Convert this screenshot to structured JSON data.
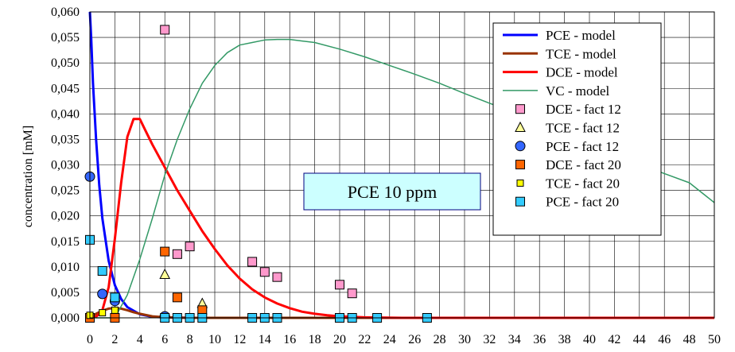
{
  "chart_data": {
    "type": "scatter",
    "ylabel": "concentration [mM]",
    "xlim": [
      0,
      50
    ],
    "ylim": [
      0,
      0.06
    ],
    "x_ticks": [
      0,
      2,
      4,
      6,
      8,
      10,
      12,
      14,
      16,
      18,
      20,
      22,
      24,
      26,
      28,
      30,
      32,
      34,
      36,
      38,
      40,
      42,
      44,
      46,
      48,
      50
    ],
    "y_ticks": [
      0,
      0.005,
      0.01,
      0.015,
      0.02,
      0.025,
      0.03,
      0.035,
      0.04,
      0.045,
      0.05,
      0.055,
      0.06
    ],
    "y_tick_labels": [
      "0,000",
      "0,005",
      "0,010",
      "0,015",
      "0,020",
      "0,025",
      "0,030",
      "0,035",
      "0,040",
      "0,045",
      "0,050",
      "0,055",
      "0,060"
    ],
    "grid": true,
    "legend_position": "top-right",
    "annotation": "PCE 10 ppm",
    "series": [
      {
        "name": "PCE - model",
        "kind": "line",
        "color": "#0000ff",
        "width": 3,
        "x": [
          0,
          0.1,
          0.25,
          0.5,
          0.75,
          1,
          1.5,
          2,
          2.5,
          3,
          4,
          5,
          6,
          8,
          10,
          15,
          20,
          30,
          40,
          50
        ],
        "y": [
          0.06,
          0.055,
          0.046,
          0.035,
          0.026,
          0.0195,
          0.0112,
          0.0064,
          0.0037,
          0.0021,
          0.0007,
          0.0002,
          0.0001,
          0,
          0,
          0,
          0,
          0,
          0,
          0
        ]
      },
      {
        "name": "TCE - model",
        "kind": "line",
        "color": "#993300",
        "width": 3,
        "x": [
          0,
          0.5,
          1,
          1.5,
          2,
          2.5,
          3,
          3.5,
          4,
          5,
          6,
          8,
          10,
          15,
          20,
          30,
          40,
          50
        ],
        "y": [
          0,
          0.0008,
          0.0014,
          0.0018,
          0.0019,
          0.0018,
          0.0015,
          0.0011,
          0.0008,
          0.0003,
          0.0001,
          0,
          0,
          0,
          0,
          0,
          0,
          0
        ]
      },
      {
        "name": "DCE - model",
        "kind": "line",
        "color": "#ff0000",
        "width": 3,
        "x": [
          0,
          0.5,
          1,
          1.5,
          2,
          2.5,
          3,
          3.5,
          4,
          4.5,
          5,
          6,
          7,
          8,
          9,
          10,
          11,
          12,
          13,
          14,
          15,
          16,
          17,
          18,
          19,
          20,
          22,
          25,
          30,
          40,
          50
        ],
        "y": [
          0,
          0.0002,
          0.0015,
          0.006,
          0.0155,
          0.0265,
          0.0355,
          0.039,
          0.039,
          0.0365,
          0.034,
          0.0295,
          0.025,
          0.021,
          0.017,
          0.0135,
          0.0103,
          0.0077,
          0.0056,
          0.004,
          0.0028,
          0.0019,
          0.0012,
          0.0008,
          0.0005,
          0.0003,
          0.0001,
          0,
          0,
          0,
          0
        ]
      },
      {
        "name": "VC - model",
        "kind": "line",
        "color": "#339966",
        "width": 1.5,
        "x": [
          0,
          2,
          3,
          4,
          5,
          6,
          7,
          8,
          9,
          10,
          11,
          12,
          13,
          14,
          15,
          16,
          17,
          18,
          20,
          22,
          24,
          26,
          28,
          30,
          32,
          34,
          36,
          38,
          40,
          42,
          44,
          46,
          48,
          50
        ],
        "y": [
          0,
          0,
          0.0045,
          0.0115,
          0.0195,
          0.028,
          0.035,
          0.041,
          0.046,
          0.0495,
          0.052,
          0.0535,
          0.054,
          0.0545,
          0.0546,
          0.0546,
          0.0543,
          0.054,
          0.0527,
          0.0512,
          0.0495,
          0.0478,
          0.046,
          0.044,
          0.0421,
          0.0403,
          0.0382,
          0.0363,
          0.0343,
          0.0323,
          0.0301,
          0.0283,
          0.0265,
          0.0226
        ]
      },
      {
        "name": "DCE - fact 12",
        "kind": "marker",
        "shape": "square",
        "fill": "#ff99cc",
        "x": [
          6,
          7,
          8,
          13,
          14,
          15,
          20,
          21
        ],
        "y": [
          0.0565,
          0.0125,
          0.014,
          0.011,
          0.009,
          0.008,
          0.0065,
          0.0048
        ]
      },
      {
        "name": "TCE - fact 12",
        "kind": "marker",
        "shape": "triangle",
        "fill": "#ffff99",
        "x": [
          6,
          9
        ],
        "y": [
          0.0085,
          0.0028
        ]
      },
      {
        "name": "PCE - fact 12",
        "kind": "marker",
        "shape": "circle",
        "fill": "#3366ff",
        "x": [
          0,
          1,
          2,
          6
        ],
        "y": [
          0.0277,
          0.0047,
          0.0033,
          0.0003
        ]
      },
      {
        "name": "DCE - fact 20",
        "kind": "marker",
        "shape": "square",
        "fill": "#ff6600",
        "x": [
          0,
          2,
          6,
          7,
          9
        ],
        "y": [
          0,
          0,
          0.013,
          0.004,
          0.0015
        ]
      },
      {
        "name": "TCE - fact 20",
        "kind": "marker",
        "shape": "smallsquare",
        "fill": "#ffff00",
        "x": [
          0,
          1,
          2
        ],
        "y": [
          0.0005,
          0.001,
          0.0015
        ]
      },
      {
        "name": "PCE - fact 20",
        "kind": "marker",
        "shape": "square",
        "fill": "#33ccff",
        "x": [
          0,
          1,
          2,
          6,
          7,
          8,
          9,
          13,
          14,
          15,
          20,
          21,
          23,
          27
        ],
        "y": [
          0.0153,
          0.0092,
          0.004,
          0,
          0,
          0,
          0,
          0,
          0,
          0,
          0,
          0,
          0,
          0
        ]
      }
    ]
  }
}
